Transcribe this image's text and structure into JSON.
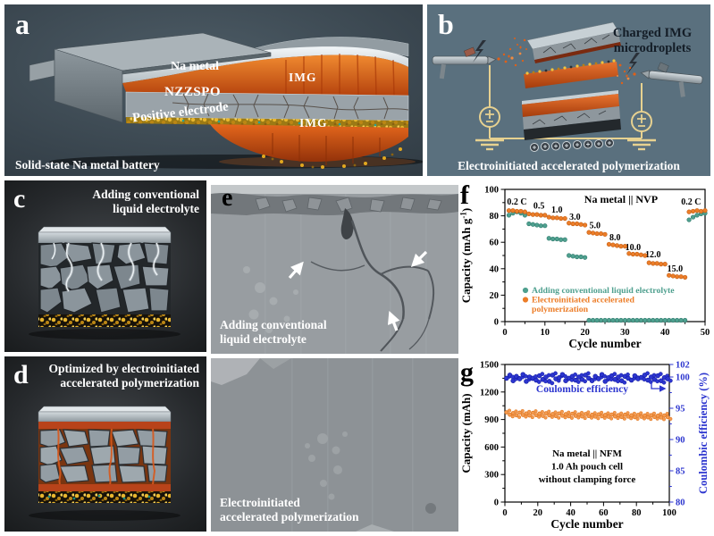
{
  "figure": {
    "panels": {
      "a": {
        "label": "a",
        "na_metal": "Na metal",
        "nzzspo": "NZZSPO",
        "positive_electrode": "Positive electrode",
        "img_top": "IMG",
        "img_bottom": "IMG",
        "caption": "Solid-state Na metal battery"
      },
      "b": {
        "label": "b",
        "annotation": "Charged IMG\nmicrodroplets",
        "caption": "Electroinitiated accelerated polymerization"
      },
      "c": {
        "label": "c",
        "title": "Adding conventional\nliquid electrolyte"
      },
      "d": {
        "label": "d",
        "title": "Optimized by electroinitiated\naccelerated polymerization"
      },
      "e": {
        "label": "e",
        "top_caption": "Adding conventional\nliquid electrolyte",
        "bottom_caption": "Electroinitiated\naccelerated polymerization"
      },
      "f": {
        "label": "f"
      },
      "g": {
        "label": "g"
      }
    }
  },
  "colors": {
    "teal": "#4fa08f",
    "orange": "#ec7d28",
    "blue": "#2d36cf",
    "capacity_orange": "#f29a50"
  },
  "chart_data": [
    {
      "id": "f",
      "type": "scatter",
      "annotation": "Na metal || NVP",
      "xlabel": "Cycle number",
      "ylabel_main": "Capacity (mAh g",
      "ylabel_sup": "-1",
      "ylabel_close": ")",
      "xlim": [
        0,
        50
      ],
      "ylim": [
        0,
        100
      ],
      "xticks": [
        0,
        10,
        20,
        30,
        40,
        50
      ],
      "yticks": [
        0,
        20,
        40,
        60,
        80,
        100
      ],
      "rate_labels": [
        {
          "text": "0.2 C",
          "x": 3,
          "y": 88.5
        },
        {
          "text": "0.5",
          "x": 8.5,
          "y": 85.5
        },
        {
          "text": "1.0",
          "x": 13,
          "y": 82.5
        },
        {
          "text": "3.0",
          "x": 17.5,
          "y": 77
        },
        {
          "text": "5.0",
          "x": 22.5,
          "y": 70.5
        },
        {
          "text": "8.0",
          "x": 27.5,
          "y": 61.5
        },
        {
          "text": "10.0",
          "x": 32,
          "y": 54
        },
        {
          "text": "12.0",
          "x": 37,
          "y": 48.5
        },
        {
          "text": "15.0",
          "x": 42.5,
          "y": 38
        },
        {
          "text": "0.2 C",
          "x": 46.5,
          "y": 88.5
        }
      ],
      "legend": [
        {
          "color": "#4fa08f",
          "lines": [
            "Adding conventional liquid electrolyte"
          ]
        },
        {
          "color": "#ec7d28",
          "lines": [
            "Electroinitiated accelerated",
            "polymerization"
          ]
        }
      ],
      "series": [
        {
          "name": "Adding conventional liquid electrolyte",
          "color": "#4fa08f",
          "edge": "#2f7a6d",
          "x": [
            1,
            2,
            3,
            4,
            5,
            6,
            7,
            8,
            9,
            10,
            11,
            12,
            13,
            14,
            15,
            16,
            17,
            18,
            19,
            20,
            21,
            22,
            23,
            24,
            25,
            26,
            27,
            28,
            29,
            30,
            31,
            32,
            33,
            34,
            35,
            36,
            37,
            38,
            39,
            40,
            41,
            42,
            43,
            44,
            45,
            46,
            47,
            48,
            49,
            50
          ],
          "values": [
            80.5,
            82,
            83,
            82,
            80.5,
            74,
            73.5,
            73,
            72.5,
            72.5,
            63,
            62.5,
            62.5,
            62,
            62,
            50,
            49.5,
            49,
            49,
            48.5,
            1,
            1,
            1,
            1,
            1,
            1,
            1,
            1,
            1,
            1,
            1,
            1,
            1,
            1,
            1,
            1,
            1,
            1,
            1,
            1,
            1,
            1,
            1,
            1,
            1,
            77,
            79,
            80.5,
            81.5,
            82
          ]
        },
        {
          "name": "Electroinitiated accelerated polymerization",
          "color": "#ec7d28",
          "edge": "#c05c12",
          "x": [
            1,
            2,
            3,
            4,
            5,
            6,
            7,
            8,
            9,
            10,
            11,
            12,
            13,
            14,
            15,
            16,
            17,
            18,
            19,
            20,
            21,
            22,
            23,
            24,
            25,
            26,
            27,
            28,
            29,
            30,
            31,
            32,
            33,
            34,
            35,
            36,
            37,
            38,
            39,
            40,
            41,
            42,
            43,
            44,
            45,
            46,
            47,
            48,
            49,
            50
          ],
          "values": [
            84,
            84,
            83.5,
            83.5,
            83,
            81.5,
            81,
            81,
            80.5,
            80.5,
            79,
            78.5,
            78.5,
            78,
            78,
            74.5,
            74,
            74,
            73.5,
            73,
            67.5,
            67,
            66.5,
            66.5,
            66,
            58.5,
            58,
            57.5,
            57,
            57,
            51.5,
            51,
            51,
            50.5,
            50,
            44.5,
            44,
            44,
            43.5,
            43.5,
            35,
            34.5,
            34,
            34,
            33.5,
            83,
            83.5,
            84,
            83.5,
            84
          ]
        }
      ]
    },
    {
      "id": "g",
      "type": "scatter-dual-y",
      "xlabel": "Cycle number",
      "ylabel_left": "Capacity (mAh)",
      "ylabel_right": "Coulombic efficiency (%)",
      "ce_label": "Coulombic  efficiency",
      "annotation_lines": [
        "Na metal || NFM",
        "1.0 Ah  pouch  cell",
        "without  clamping  force"
      ],
      "xlim": [
        0,
        100
      ],
      "ylim_left": [
        0,
        1500
      ],
      "ylim_right": [
        80,
        102
      ],
      "xticks": [
        0,
        20,
        40,
        60,
        80,
        100
      ],
      "yticks_left": [
        0,
        300,
        600,
        900,
        1200,
        1500
      ],
      "yticks_right": [
        80,
        85,
        90,
        95,
        100,
        102
      ],
      "series": [
        {
          "name": "Capacity",
          "axis": "left",
          "color": "#f29a50",
          "edge": "#e0761f",
          "x": [
            1,
            3,
            5,
            7,
            9,
            11,
            13,
            15,
            17,
            19,
            21,
            23,
            25,
            27,
            29,
            31,
            33,
            35,
            37,
            39,
            41,
            43,
            45,
            47,
            49,
            51,
            53,
            55,
            57,
            59,
            61,
            63,
            65,
            67,
            69,
            71,
            73,
            75,
            77,
            79,
            81,
            83,
            85,
            87,
            89,
            91,
            93,
            95,
            97,
            99
          ],
          "values": [
            978,
            952,
            970,
            946,
            974,
            950,
            966,
            944,
            972,
            948,
            964,
            940,
            968,
            946,
            960,
            938,
            966,
            942,
            958,
            936,
            962,
            940,
            955,
            934,
            960,
            938,
            952,
            932,
            956,
            936,
            950,
            930,
            954,
            934,
            948,
            928,
            952,
            932,
            946,
            926,
            950,
            930,
            944,
            924,
            947,
            928,
            942,
            922,
            944,
            926
          ]
        },
        {
          "name": "Coulombic efficiency",
          "axis": "right",
          "color": "#2d36cf",
          "edge": "#141da8",
          "x": [
            1,
            3,
            5,
            7,
            9,
            11,
            13,
            15,
            17,
            19,
            21,
            23,
            25,
            27,
            29,
            31,
            33,
            35,
            37,
            39,
            41,
            43,
            45,
            47,
            49,
            51,
            53,
            55,
            57,
            59,
            61,
            63,
            65,
            67,
            69,
            71,
            73,
            75,
            77,
            79,
            81,
            83,
            85,
            87,
            89,
            91,
            93,
            95,
            97,
            99
          ],
          "values": [
            99.8,
            100.3,
            99.4,
            100.1,
            99.7,
            100.4,
            99.3,
            100.0,
            99.8,
            99.5,
            100.2,
            99.6,
            100.0,
            99.3,
            100.3,
            99.7,
            99.9,
            100.4,
            99.4,
            99.8,
            100.1,
            99.5,
            100.0,
            99.6,
            100.3,
            99.8,
            99.4,
            100.1,
            99.7,
            100.4,
            99.3,
            99.9,
            100.2,
            99.6,
            100.0,
            99.4,
            100.1,
            99.8,
            99.5,
            100.2,
            99.7,
            99.9,
            100.3,
            99.5,
            100.0,
            99.6,
            100.2,
            99.4,
            99.9,
            99.7
          ]
        }
      ]
    }
  ]
}
